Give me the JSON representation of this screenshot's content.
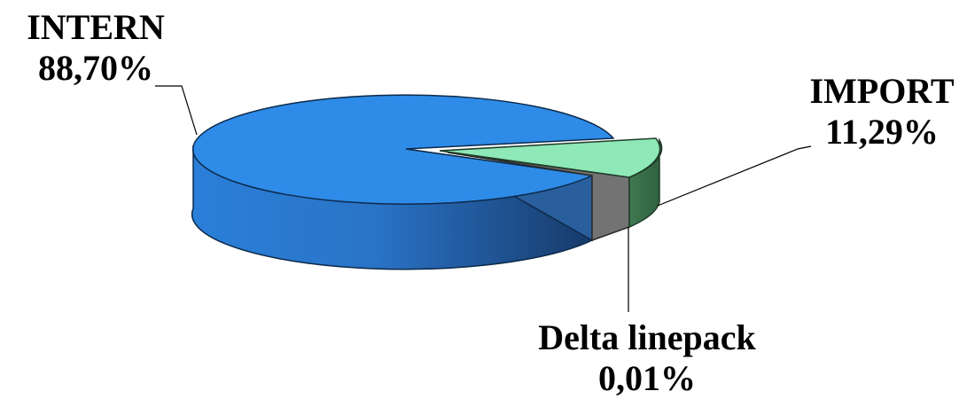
{
  "chart_data": {
    "type": "pie",
    "style": "3d-exploded",
    "slices": [
      {
        "name": "INTERN",
        "value_label": "88,70%",
        "value": 88.7,
        "color": "#2e8be8"
      },
      {
        "name": "IMPORT",
        "value_label": "11,29%",
        "value": 11.29,
        "color": "#8ee8b8"
      },
      {
        "name": "Delta linepack",
        "value_label": "0,01%",
        "value": 0.01,
        "color": "#737373"
      }
    ]
  }
}
